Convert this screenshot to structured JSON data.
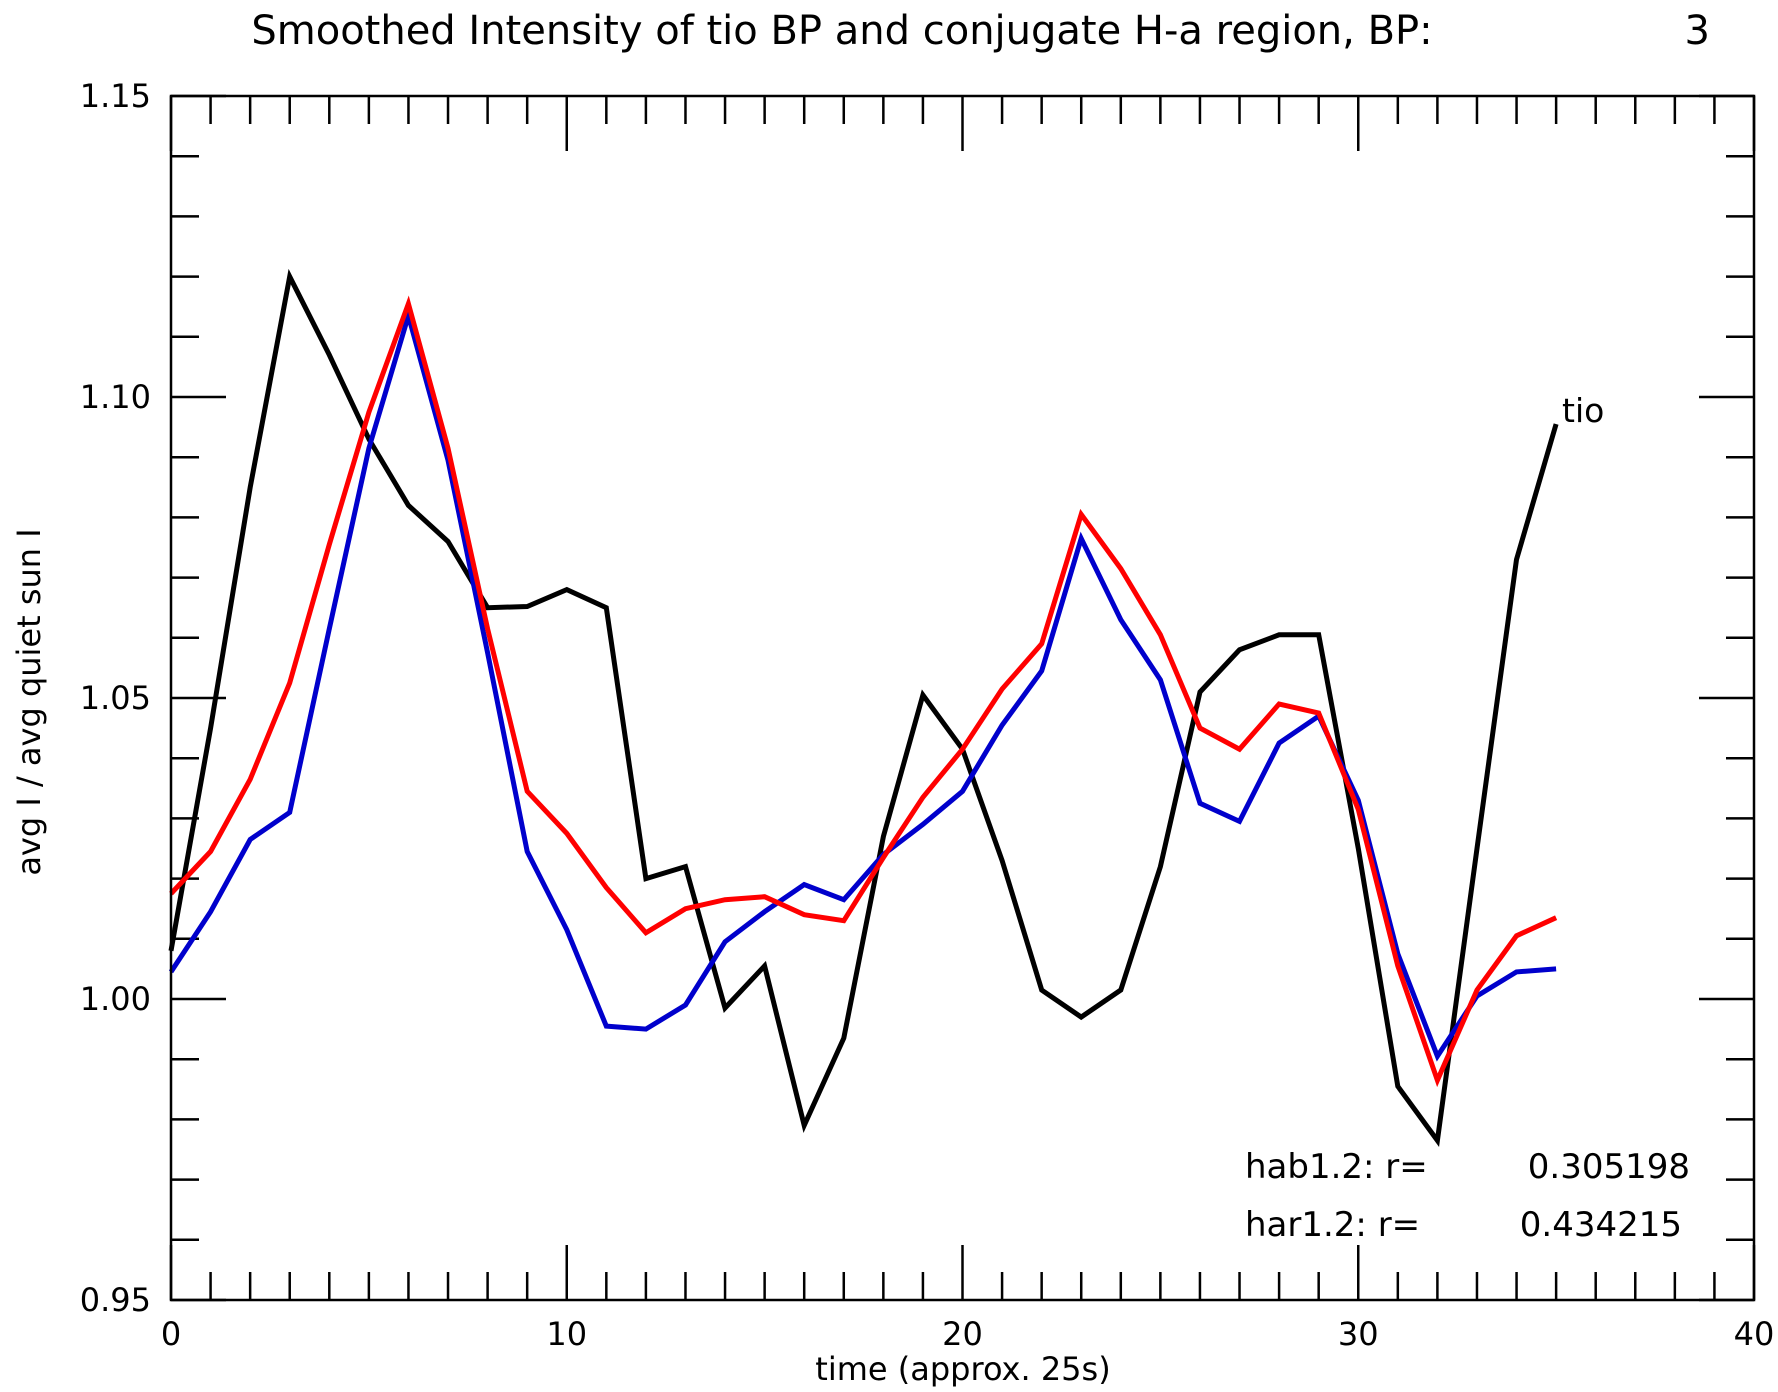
{
  "chart_data": {
    "type": "line",
    "title": "Smoothed Intensity of tio BP and conjugate H-a region, BP:",
    "title_value": "3",
    "xlabel": "time (approx. 25s)",
    "ylabel": "avg I / avg quiet sun I",
    "xlim": [
      0,
      40
    ],
    "ylim": [
      0.95,
      1.15
    ],
    "x_ticks": [
      0,
      10,
      20,
      30,
      40
    ],
    "x_tick_labels": [
      "0",
      "10",
      "20",
      "30",
      "40"
    ],
    "y_ticks": [
      0.95,
      1.0,
      1.05,
      1.1,
      1.15
    ],
    "y_tick_labels": [
      "0.95",
      "1.00",
      "1.05",
      "1.10",
      "1.15"
    ],
    "x_minor_step": 1,
    "y_minor_step": 0.01,
    "grid": false,
    "series": [
      {
        "name": "tio",
        "color": "#000000",
        "x": [
          0,
          1,
          2,
          3,
          4,
          5,
          6,
          7,
          8,
          9,
          10,
          11,
          12,
          13,
          14,
          15,
          16,
          17,
          18,
          19,
          20,
          21,
          22,
          23,
          24,
          25,
          26,
          27,
          28,
          29,
          30,
          31,
          32,
          33,
          34,
          35
        ],
        "values": [
          1.008,
          1.045,
          1.085,
          1.12,
          1.107,
          1.093,
          1.082,
          1.076,
          1.065,
          1.0652,
          1.068,
          1.065,
          1.02,
          1.022,
          0.9985,
          1.0055,
          0.979,
          0.9935,
          1.027,
          1.0505,
          1.0415,
          1.023,
          1.0015,
          0.997,
          1.0015,
          1.022,
          1.051,
          1.058,
          1.0605,
          1.0605,
          1.025,
          0.9855,
          0.9765,
          1.025,
          1.073,
          1.0955
        ]
      },
      {
        "name": "",
        "color": "#0000cc",
        "x": [
          0,
          1,
          2,
          3,
          4,
          5,
          6,
          7,
          8,
          9,
          10,
          11,
          12,
          13,
          14,
          15,
          16,
          17,
          18,
          19,
          20,
          21,
          22,
          23,
          24,
          25,
          26,
          27,
          28,
          29,
          30,
          31,
          32,
          33,
          34,
          35
        ],
        "values": [
          1.0045,
          1.0145,
          1.0265,
          1.031,
          1.0615,
          1.0915,
          1.1135,
          1.0895,
          1.0575,
          1.0245,
          1.0115,
          0.9955,
          0.995,
          0.999,
          1.0095,
          1.0145,
          1.019,
          1.0165,
          1.024,
          1.029,
          1.0345,
          1.0455,
          1.0545,
          1.0765,
          1.063,
          1.053,
          1.0325,
          1.0295,
          1.0425,
          1.047,
          1.033,
          1.0075,
          0.9905,
          1.0005,
          1.0045,
          1.005
        ]
      },
      {
        "name": "",
        "color": "#ff0000",
        "x": [
          0,
          1,
          2,
          3,
          4,
          5,
          6,
          7,
          8,
          9,
          10,
          11,
          12,
          13,
          14,
          15,
          16,
          17,
          18,
          19,
          20,
          21,
          22,
          23,
          24,
          25,
          26,
          27,
          28,
          29,
          30,
          31,
          32,
          33,
          34,
          35
        ],
        "values": [
          1.0175,
          1.0245,
          1.0365,
          1.0525,
          1.0755,
          1.0975,
          1.1155,
          1.0915,
          1.0615,
          1.0345,
          1.0275,
          1.0185,
          1.011,
          1.015,
          1.0165,
          1.017,
          1.014,
          1.013,
          1.0235,
          1.0335,
          1.0415,
          1.0515,
          1.059,
          1.0805,
          1.0715,
          1.0605,
          1.045,
          1.0415,
          1.049,
          1.0475,
          1.0315,
          1.0055,
          0.9865,
          1.0015,
          1.0105,
          1.0135
        ]
      }
    ],
    "annotations": [
      {
        "label": "hab1.2: r=",
        "value": "0.305198"
      },
      {
        "label": "har1.2: r=",
        "value": "0.434215"
      }
    ]
  }
}
